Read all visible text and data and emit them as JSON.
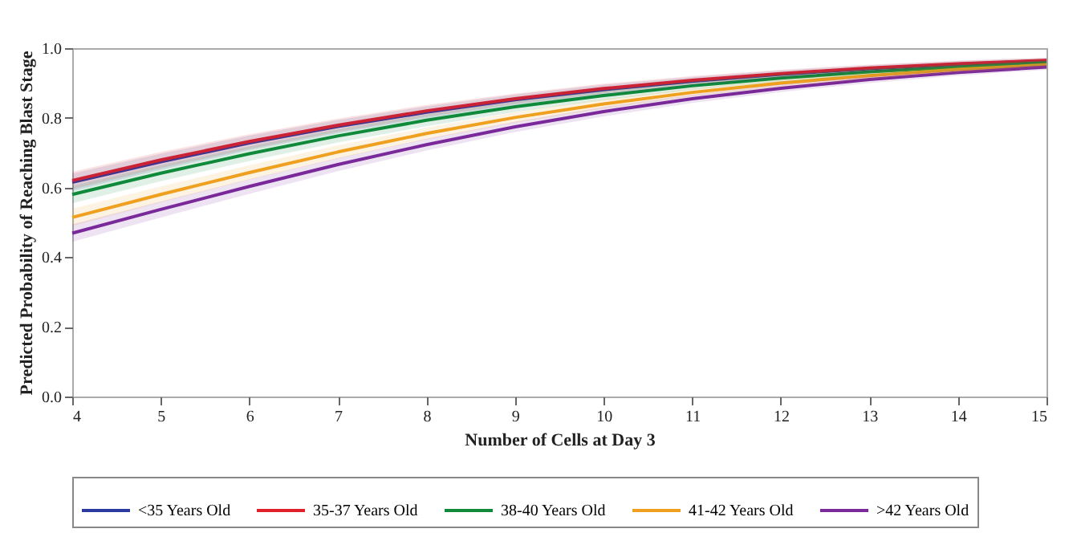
{
  "chart_data": {
    "type": "line",
    "xlabel": "Number of Cells at Day 3",
    "ylabel": "Predicted Probability of Reaching Blast Stage",
    "x": [
      4,
      5,
      6,
      7,
      8,
      9,
      10,
      11,
      12,
      13,
      14,
      15
    ],
    "xlim": [
      4,
      15
    ],
    "xticks": [
      4,
      5,
      6,
      7,
      8,
      9,
      10,
      11,
      12,
      13,
      14,
      15
    ],
    "ylim": [
      0,
      1
    ],
    "yticks": [
      {
        "value": 0,
        "label": "0.0"
      },
      {
        "value": 0.2,
        "label": "0.2"
      },
      {
        "value": 0.4,
        "label": "0.4"
      },
      {
        "value": 0.6,
        "label": "0.6"
      },
      {
        "value": 0.8,
        "label": "0.8"
      },
      {
        "value": 1,
        "label": "1.0"
      }
    ],
    "grid": false,
    "legend": "bottom",
    "marker": "none",
    "line_style": "solid",
    "series": [
      {
        "name": "<35 Years Old",
        "color": "#2a3a9e",
        "values": [
          0.615,
          0.674,
          0.728,
          0.775,
          0.816,
          0.852,
          0.881,
          0.905,
          0.925,
          0.941,
          0.954,
          0.964
        ],
        "lower": [
          0.59,
          0.651,
          0.707,
          0.756,
          0.799,
          0.837,
          0.867,
          0.893,
          0.914,
          0.931,
          0.945,
          0.956
        ],
        "upper": [
          0.64,
          0.697,
          0.749,
          0.794,
          0.833,
          0.867,
          0.895,
          0.917,
          0.936,
          0.951,
          0.963,
          0.972
        ]
      },
      {
        "name": "35-37 Years Old",
        "color": "#e0202a",
        "values": [
          0.62,
          0.679,
          0.732,
          0.779,
          0.82,
          0.855,
          0.884,
          0.908,
          0.927,
          0.943,
          0.955,
          0.965
        ],
        "lower": [
          0.595,
          0.656,
          0.711,
          0.76,
          0.803,
          0.84,
          0.87,
          0.896,
          0.916,
          0.933,
          0.946,
          0.957
        ],
        "upper": [
          0.645,
          0.702,
          0.753,
          0.798,
          0.837,
          0.87,
          0.898,
          0.92,
          0.938,
          0.953,
          0.964,
          0.973
        ]
      },
      {
        "name": "38-40 Years Old",
        "color": "#108a3a",
        "values": [
          0.58,
          0.641,
          0.697,
          0.748,
          0.793,
          0.832,
          0.864,
          0.892,
          0.914,
          0.932,
          0.946,
          0.958
        ],
        "lower": [
          0.555,
          0.618,
          0.676,
          0.729,
          0.776,
          0.817,
          0.85,
          0.88,
          0.903,
          0.922,
          0.937,
          0.95
        ],
        "upper": [
          0.605,
          0.664,
          0.718,
          0.767,
          0.81,
          0.847,
          0.878,
          0.904,
          0.925,
          0.942,
          0.955,
          0.966
        ]
      },
      {
        "name": "41-42 Years Old",
        "color": "#f0a020",
        "values": [
          0.514,
          0.58,
          0.643,
          0.702,
          0.755,
          0.801,
          0.84,
          0.873,
          0.9,
          0.921,
          0.939,
          0.952
        ],
        "lower": [
          0.489,
          0.557,
          0.622,
          0.683,
          0.738,
          0.786,
          0.826,
          0.861,
          0.889,
          0.911,
          0.93,
          0.944
        ],
        "upper": [
          0.539,
          0.603,
          0.664,
          0.721,
          0.772,
          0.816,
          0.854,
          0.885,
          0.911,
          0.931,
          0.948,
          0.96
        ]
      },
      {
        "name": ">42 Years Old",
        "color": "#7a2a9a",
        "values": [
          0.469,
          0.537,
          0.603,
          0.666,
          0.723,
          0.774,
          0.818,
          0.855,
          0.885,
          0.91,
          0.93,
          0.946
        ],
        "lower": [
          0.444,
          0.514,
          0.582,
          0.647,
          0.706,
          0.759,
          0.804,
          0.843,
          0.874,
          0.9,
          0.921,
          0.938
        ],
        "upper": [
          0.494,
          0.56,
          0.624,
          0.685,
          0.74,
          0.789,
          0.832,
          0.867,
          0.896,
          0.92,
          0.939,
          0.954
        ]
      }
    ]
  }
}
